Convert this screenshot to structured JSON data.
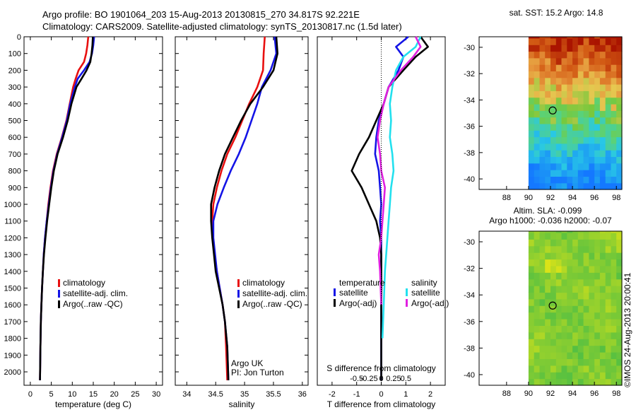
{
  "header": {
    "line1": "Argo profile: BO 1901064_203 15-Aug-2013 20130815_270 34.817S 92.221E",
    "line2": "Climatology: CARS2009. Satellite-adjusted climatology: synTS_20130817.nc (1.5d later)"
  },
  "colors": {
    "climatology": "#e81010",
    "satellite": "#1414e6",
    "argo": "#000000",
    "satellite_s": "#22e0ee",
    "argo_s": "#e020e0"
  },
  "chart_data": [
    {
      "type": "line",
      "id": "temperature",
      "xlabel": "temperature (deg C)",
      "ylabel": "",
      "xlim": [
        -1.5,
        31.5
      ],
      "ylim": [
        2080,
        0
      ],
      "xticks": [
        0,
        5,
        10,
        15,
        20,
        25,
        30
      ],
      "yticks": [
        0,
        100,
        200,
        300,
        400,
        500,
        600,
        700,
        800,
        900,
        1000,
        1100,
        1200,
        1300,
        1400,
        1500,
        1600,
        1700,
        1800,
        1900,
        2000
      ],
      "legend": [
        "climatology",
        "satellite-adj. clim.",
        "Argo(..raw -QC)"
      ],
      "legend_position": "lower-middle",
      "series": [
        {
          "name": "climatology",
          "color": "#e81010",
          "x": [
            13.8,
            13.6,
            13.3,
            12.8,
            11.5,
            10.8,
            10.2,
            9.4,
            8.6,
            7.5,
            6.3,
            5.4,
            4.8,
            4.3,
            3.9,
            3.5,
            3.2,
            3.0,
            2.8,
            2.65,
            2.5,
            2.4,
            2.3
          ],
          "y": [
            0,
            50,
            100,
            150,
            200,
            250,
            300,
            400,
            500,
            600,
            700,
            800,
            900,
            1000,
            1100,
            1200,
            1300,
            1400,
            1500,
            1600,
            1700,
            1850,
            2050
          ]
        },
        {
          "name": "satellite-adj. clim.",
          "color": "#1414e6",
          "x": [
            15.2,
            15.0,
            14.7,
            14.1,
            12.8,
            11.3,
            10.6,
            9.5,
            8.7,
            7.6,
            6.4,
            5.5,
            4.9,
            4.4,
            3.9,
            3.5,
            3.2,
            3.0,
            2.8,
            2.65,
            2.5,
            2.4,
            2.3
          ],
          "y": [
            0,
            50,
            100,
            150,
            200,
            250,
            300,
            400,
            500,
            600,
            700,
            800,
            900,
            1000,
            1100,
            1200,
            1300,
            1400,
            1500,
            1600,
            1700,
            1850,
            2050
          ]
        },
        {
          "name": "Argo(..raw -QC)",
          "color": "#000000",
          "x": [
            14.9,
            14.8,
            14.6,
            14.3,
            13.4,
            12.2,
            11.0,
            9.8,
            8.9,
            7.8,
            6.5,
            5.6,
            5.0,
            4.5,
            4.0,
            3.6,
            3.25,
            3.0,
            2.8,
            2.65,
            2.5,
            2.4,
            2.3
          ],
          "y": [
            0,
            50,
            100,
            150,
            200,
            250,
            300,
            400,
            500,
            600,
            700,
            800,
            900,
            1000,
            1100,
            1200,
            1300,
            1400,
            1500,
            1600,
            1700,
            1850,
            2050
          ]
        }
      ]
    },
    {
      "type": "line",
      "id": "salinity",
      "xlabel": "salinity",
      "ylabel": "",
      "xlim": [
        33.8,
        36.1
      ],
      "ylim": [
        2080,
        0
      ],
      "xticks": [
        34,
        34.5,
        35,
        35.5,
        36
      ],
      "yticks": [
        0,
        100,
        200,
        300,
        400,
        500,
        600,
        700,
        800,
        900,
        1000,
        1100,
        1200,
        1300,
        1400,
        1500,
        1600,
        1700,
        1800,
        1900,
        2000
      ],
      "legend": [
        "climatology",
        "satellite-adj. clim.",
        "Argo(..raw -QC)"
      ],
      "legend_position": "lower-right",
      "annotation": [
        "Argo UK",
        "PI: Jon Turton"
      ],
      "series": [
        {
          "name": "climatology",
          "color": "#e81010",
          "x": [
            35.35,
            35.33,
            35.32,
            35.22,
            35.08,
            34.96,
            34.84,
            34.7,
            34.6,
            34.52,
            34.46,
            34.44,
            34.45,
            34.48,
            34.52,
            34.57,
            34.62,
            34.66,
            34.68,
            34.7
          ],
          "y": [
            0,
            100,
            200,
            300,
            400,
            500,
            600,
            700,
            800,
            900,
            1000,
            1100,
            1200,
            1300,
            1400,
            1500,
            1600,
            1700,
            1850,
            2050
          ]
        },
        {
          "name": "satellite-adj. clim.",
          "color": "#1414e6",
          "x": [
            35.52,
            35.55,
            35.45,
            35.3,
            35.22,
            35.12,
            35.02,
            34.9,
            34.76,
            34.64,
            34.53,
            34.46,
            34.46,
            34.49,
            34.52,
            34.57,
            34.62,
            34.66,
            34.7,
            34.72
          ],
          "y": [
            0,
            100,
            200,
            300,
            400,
            500,
            600,
            700,
            800,
            900,
            1000,
            1100,
            1200,
            1300,
            1400,
            1500,
            1600,
            1700,
            1850,
            2050
          ]
        },
        {
          "name": "Argo(..raw -QC)",
          "color": "#000000",
          "x": [
            35.55,
            35.57,
            35.5,
            35.32,
            35.1,
            34.94,
            34.8,
            34.66,
            34.56,
            34.48,
            34.42,
            34.42,
            34.44,
            34.47,
            34.5,
            34.56,
            34.62,
            34.66,
            34.7,
            34.72
          ],
          "y": [
            0,
            100,
            200,
            300,
            400,
            500,
            600,
            700,
            800,
            900,
            1000,
            1100,
            1200,
            1300,
            1400,
            1500,
            1600,
            1700,
            1850,
            2050
          ]
        }
      ]
    },
    {
      "type": "line",
      "id": "differences",
      "xlabel": "T difference from climatology",
      "xlabel_top": "S difference from climatology",
      "top_ticks": [
        "-0.5",
        "-0.25",
        "0",
        "0.25",
        "0.5"
      ],
      "xlim": [
        -2.6,
        2.6
      ],
      "ylim": [
        2080,
        0
      ],
      "xticks": [
        -2,
        -1,
        0,
        1,
        2
      ],
      "legend": {
        "col1_title": "temperature",
        "col2_title": "salinity",
        "col1": [
          "satellite",
          "Argo(-adj)"
        ],
        "col2": [
          "satellite",
          "Argo(-adj)"
        ]
      },
      "legend_position": "middle",
      "series": [
        {
          "name": "temperature satellite",
          "color": "#1414e6",
          "x": [
            1.1,
            0.6,
            0.9,
            0.7,
            0.3,
            0.1,
            -0.1,
            -0.2,
            -0.25,
            -0.1,
            -0.05,
            0.0,
            -0.05,
            0.0,
            0.0,
            0.0,
            0.0,
            0.0,
            0.0
          ],
          "y": [
            0,
            60,
            120,
            200,
            300,
            400,
            500,
            600,
            700,
            800,
            900,
            1000,
            1100,
            1200,
            1300,
            1400,
            1600,
            1800,
            2050
          ]
        },
        {
          "name": "temperature Argo(-adj)",
          "color": "#000000",
          "x": [
            1.6,
            1.9,
            1.4,
            0.9,
            0.3,
            0.1,
            -0.2,
            -0.5,
            -0.9,
            -1.2,
            -0.8,
            -0.5,
            -0.2,
            -0.05,
            0.0,
            0.0,
            0.0,
            0.0,
            0.0
          ],
          "y": [
            0,
            60,
            120,
            200,
            300,
            400,
            500,
            600,
            700,
            800,
            900,
            1000,
            1100,
            1200,
            1300,
            1400,
            1600,
            1800,
            2050
          ]
        },
        {
          "name": "salinity satellite",
          "color": "#22e0ee",
          "x": [
            1.6,
            1.4,
            0.9,
            0.6,
            0.45,
            0.35,
            0.4,
            0.35,
            0.45,
            0.5,
            0.4,
            0.35,
            0.3,
            0.25,
            0.2,
            0.15,
            0.1,
            0.05
          ],
          "y": [
            0,
            60,
            120,
            200,
            300,
            400,
            500,
            600,
            700,
            800,
            900,
            1000,
            1100,
            1200,
            1300,
            1400,
            1600,
            1800
          ]
        },
        {
          "name": "salinity Argo(-adj)",
          "color": "#e020e0",
          "x": [
            1.4,
            1.6,
            1.3,
            0.8,
            0.3,
            0.1,
            -0.05,
            -0.15,
            -0.05,
            0.0,
            0.15,
            0.1,
            0.05,
            0.0,
            -0.1,
            -0.05,
            0.0
          ],
          "y": [
            0,
            60,
            120,
            200,
            300,
            400,
            500,
            600,
            700,
            800,
            900,
            1000,
            1100,
            1200,
            1300,
            1400,
            1600
          ]
        }
      ]
    },
    {
      "type": "heatmap",
      "id": "sst-map",
      "title": "sat. SST: 15.2 Argo: 14.8",
      "xlim": [
        85.5,
        98.5
      ],
      "ylim": [
        -40.8,
        -29.2
      ],
      "xticks": [
        88,
        90,
        92,
        94,
        96,
        98
      ],
      "yticks": [
        -30,
        -32,
        -34,
        -36,
        -38,
        -40
      ],
      "marker": {
        "lon": 92.2,
        "lat": -34.8
      }
    },
    {
      "type": "heatmap",
      "id": "sla-map",
      "title": "Altim. SLA: -0.099",
      "subtitle": "Argo h1000: -0.036 h2000: -0.07",
      "xlim": [
        85.5,
        98.5
      ],
      "ylim": [
        -40.8,
        -29.2
      ],
      "xticks": [
        88,
        90,
        92,
        94,
        96,
        98
      ],
      "yticks": [
        -30,
        -32,
        -34,
        -36,
        -38,
        -40
      ],
      "marker": {
        "lon": 92.2,
        "lat": -34.8
      }
    }
  ],
  "watermark": "©IMOS 24-Aug-2013 20:00:41"
}
